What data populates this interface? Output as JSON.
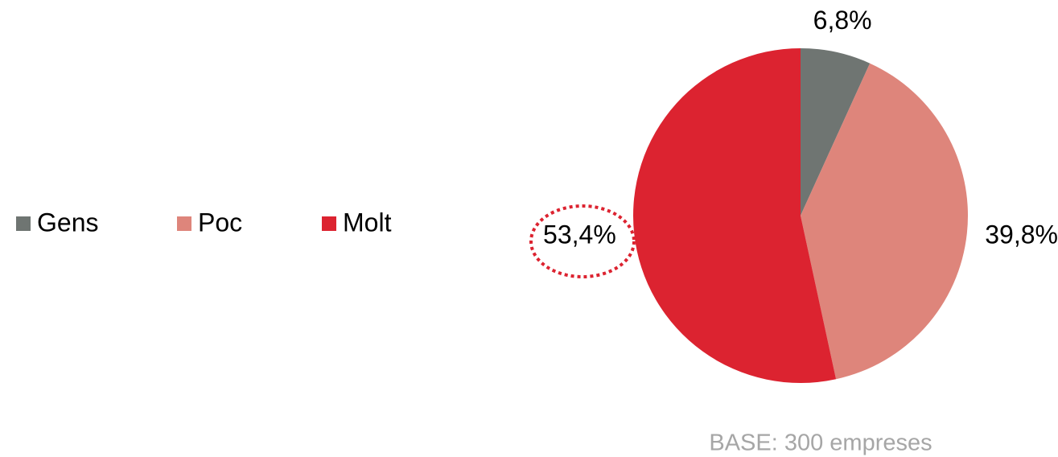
{
  "chart_data": {
    "type": "pie",
    "categories": [
      "Gens",
      "Poc",
      "Molt"
    ],
    "values": [
      6.8,
      39.8,
      53.4
    ],
    "value_labels": [
      "6,8%",
      "39,8%",
      "53,4%"
    ],
    "colors": [
      "#6f7572",
      "#de857b",
      "#dc2330"
    ],
    "legend": "left",
    "annotation": "BASE: 300 empreses"
  }
}
